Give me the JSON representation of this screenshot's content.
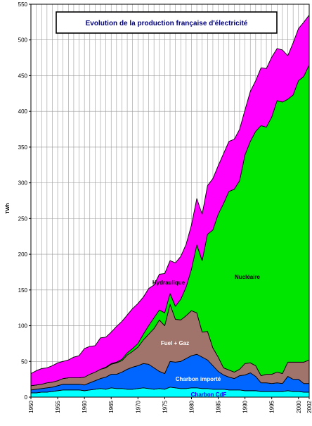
{
  "chart_data": {
    "type": "area",
    "stacked": true,
    "title": "Evolution de la production française d'électricité",
    "ylabel": "TWh",
    "xlabel": "",
    "xlim": [
      1950,
      2002
    ],
    "ylim": [
      0,
      550
    ],
    "grid": true,
    "x_ticks": [
      "1950",
      "1955",
      "1960",
      "1965",
      "1970",
      "1975",
      "1980",
      "1985",
      "1990",
      "1995",
      "2000",
      "2002"
    ],
    "y_ticks": [
      "0",
      "50",
      "100",
      "150",
      "200",
      "250",
      "300",
      "350",
      "400",
      "450",
      "500",
      "550"
    ],
    "x": [
      1950,
      1951,
      1952,
      1953,
      1954,
      1955,
      1956,
      1957,
      1958,
      1959,
      1960,
      1961,
      1962,
      1963,
      1964,
      1965,
      1966,
      1967,
      1968,
      1969,
      1970,
      1971,
      1972,
      1973,
      1974,
      1975,
      1976,
      1977,
      1978,
      1979,
      1980,
      1981,
      1982,
      1983,
      1984,
      1985,
      1986,
      1987,
      1988,
      1989,
      1990,
      1991,
      1992,
      1993,
      1994,
      1995,
      1996,
      1997,
      1998,
      1999,
      2000,
      2001,
      2002
    ],
    "series": [
      {
        "name": "Charbon CdF",
        "color": "#00ffff",
        "values": [
          6,
          6,
          7,
          7,
          8,
          9,
          10,
          10,
          10,
          10,
          9,
          10,
          11,
          12,
          11,
          13,
          12,
          12,
          11,
          11,
          12,
          13,
          12,
          11,
          12,
          11,
          14,
          13,
          12,
          12,
          13,
          13,
          12,
          12,
          11,
          11,
          11,
          10,
          10,
          10,
          9,
          9,
          9,
          8,
          8,
          8,
          8,
          8,
          9,
          8,
          8,
          7,
          7
        ]
      },
      {
        "name": "Charbon importé",
        "color": "#0066ff",
        "values": [
          4,
          5,
          5,
          6,
          6,
          7,
          8,
          8,
          8,
          8,
          8,
          10,
          12,
          14,
          17,
          19,
          20,
          23,
          28,
          31,
          32,
          34,
          34,
          30,
          24,
          22,
          36,
          36,
          38,
          42,
          45,
          47,
          44,
          40,
          33,
          25,
          20,
          18,
          16,
          20,
          22,
          25,
          20,
          12,
          12,
          11,
          12,
          11,
          20,
          17,
          17,
          12,
          12
        ]
      },
      {
        "name": "Fuel + Gaz",
        "color": "#a0746a",
        "values": [
          6,
          6,
          6,
          7,
          7,
          7,
          8,
          9,
          9,
          9,
          11,
          12,
          12,
          13,
          13,
          14,
          16,
          16,
          20,
          22,
          26,
          33,
          42,
          55,
          72,
          67,
          80,
          60,
          58,
          60,
          63,
          58,
          35,
          40,
          25,
          20,
          10,
          10,
          9,
          9,
          16,
          14,
          15,
          10,
          12,
          13,
          15,
          14,
          20,
          24,
          24,
          30,
          33
        ]
      },
      {
        "name": "Nucléaire",
        "color": "#00e600",
        "values": [
          0,
          0,
          0,
          0,
          0,
          0,
          0,
          0,
          0,
          0,
          0,
          0,
          0,
          0,
          1,
          1,
          1,
          2,
          3,
          4,
          5,
          8,
          12,
          15,
          14,
          18,
          15,
          18,
          29,
          40,
          58,
          95,
          100,
          136,
          165,
          200,
          230,
          250,
          256,
          264,
          292,
          310,
          328,
          350,
          346,
          360,
          380,
          380,
          368,
          374,
          394,
          400,
          413
        ]
      },
      {
        "name": "Hydraulique",
        "color": "#ff00ff",
        "values": [
          17,
          20,
          22,
          21,
          23,
          25,
          24,
          25,
          29,
          31,
          40,
          39,
          37,
          44,
          42,
          44,
          50,
          53,
          53,
          56,
          56,
          52,
          52,
          46,
          50,
          55,
          46,
          61,
          60,
          60,
          62,
          65,
          65,
          68,
          72,
          68,
          70,
          70,
          70,
          72,
          63,
          70,
          71,
          81,
          82,
          84,
          73,
          73,
          61,
          73,
          73,
          76,
          70
        ]
      }
    ],
    "labels": {
      "hydraulique": "Hydraulique",
      "nucleaire": "Nucléaire",
      "fuel_gaz": "Fuel + Gaz",
      "charbon_importe": "Charbon importé",
      "charbon_cdf": "Charbon CdF"
    }
  }
}
